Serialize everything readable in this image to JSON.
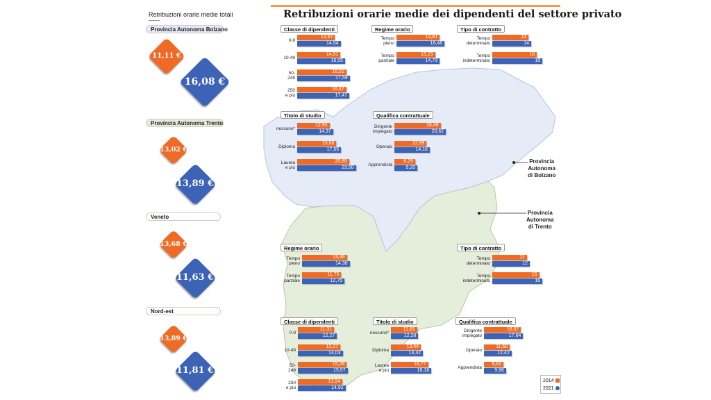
{
  "left_title": "Retribuzioni orarie medie totali",
  "main_title": "Retribuzioni orarie medie dei dipendenti del settore privato",
  "colors": {
    "y2014": "#ef6b25",
    "y2021": "#3c63b5",
    "bolzano_map": "#e6ecf7",
    "trento_map": "#e5eddb"
  },
  "legend": {
    "y2014": "2014",
    "y2021": "2021"
  },
  "map_labels": {
    "bolzano": [
      "Provincia",
      "Autonoma",
      "di Bolzano"
    ],
    "trento": [
      "Provincia",
      "Autonoma",
      "di Trento"
    ]
  },
  "chart_data": [
    {
      "type": "bar",
      "id": "totals",
      "regions": [
        {
          "name": "Provincia Autonoma Bolzano",
          "v2014": 11.11,
          "v2021": 16.08,
          "label2014": "11,11 €",
          "label2021": "16,08 €"
        },
        {
          "name": "Provincia Autonoma Trento",
          "v2014": 13.02,
          "v2021": 13.89,
          "label2014": "13,02 €",
          "label2021": "13,89 €"
        },
        {
          "name": "Veneto",
          "v2014": 13.68,
          "v2021": 11.63,
          "label2014": "13,68 €",
          "label2021": "11,63 €"
        },
        {
          "name": "Nord-est",
          "v2014": 13.89,
          "v2021": 11.81,
          "label2014": "13,89 €",
          "label2021": "11,81 €"
        }
      ]
    },
    {
      "type": "bar",
      "id": "bz-classe",
      "title": "Classe di dipendenti",
      "categories": [
        [
          "0-9"
        ],
        [
          "10-49"
        ],
        [
          "50-",
          "249"
        ],
        [
          "250",
          "e più"
        ]
      ],
      "series": [
        {
          "name": "2014",
          "values": [
            12.67,
            14.51,
            16.52,
            16.47
          ],
          "labels": [
            "12,67",
            "14,51",
            "16,52",
            "16,47"
          ]
        },
        {
          "name": "2021",
          "values": [
            14.54,
            16.05,
            17.59,
            17.47
          ],
          "labels": [
            "14,54",
            "16,05",
            "17,59",
            "17,47"
          ]
        }
      ]
    },
    {
      "type": "bar",
      "id": "bz-regime",
      "title": "Regime orario",
      "categories": [
        [
          "Tempo",
          "pieno"
        ],
        [
          "Tempo",
          "parziale"
        ]
      ],
      "series": [
        {
          "name": "2014",
          "values": [
            14.81,
            13.23
          ],
          "labels": [
            "14,81",
            "13,23"
          ]
        },
        {
          "name": "2021",
          "values": [
            16.48,
            14.79
          ],
          "labels": [
            "16,48",
            "14,79"
          ]
        }
      ]
    },
    {
      "type": "bar",
      "id": "bz-contratto",
      "title": "Tipo di contratto",
      "categories": [
        [
          "Tempo",
          "determinato"
        ],
        [
          "Tempo",
          "indeterminato"
        ]
      ],
      "series": [
        {
          "name": "2014",
          "values": [
            13,
            16
          ],
          "labels": [
            "13",
            "16"
          ]
        },
        {
          "name": "2021",
          "values": [
            14,
            18
          ],
          "labels": [
            "14",
            "18"
          ]
        }
      ]
    },
    {
      "type": "bar",
      "id": "bz-titolo",
      "title": "Titolo di studio",
      "categories": [
        [
          "nessuno*"
        ],
        [
          "Diploma"
        ],
        [
          "Laurea",
          "e più"
        ]
      ],
      "series": [
        {
          "name": "2014",
          "values": [
            12.93,
            15.66,
            20.85
          ],
          "labels": [
            "12,93",
            "15,66",
            "20,85"
          ]
        },
        {
          "name": "2021",
          "values": [
            14.37,
            17.55,
            23.5
          ],
          "labels": [
            "14,37",
            "17,55",
            "23,50"
          ]
        }
      ]
    },
    {
      "type": "bar",
      "id": "bz-qualifica",
      "title": "Qualifica contrattuale",
      "categories": [
        [
          "Dirigente",
          "impiegato"
        ],
        [
          "Operaio"
        ],
        [
          "Apprendista"
        ]
      ],
      "series": [
        {
          "name": "2014",
          "values": [
            18.49,
            12.89,
            8.29
          ],
          "labels": [
            "18,49",
            "12,89",
            "8,29"
          ]
        },
        {
          "name": "2021",
          "values": [
            20.62,
            14.16,
            9.2
          ],
          "labels": [
            "20,62",
            "14,16",
            "9,20"
          ]
        }
      ]
    },
    {
      "type": "bar",
      "id": "tn-regime",
      "title": "Regime orario",
      "categories": [
        [
          "Tempo",
          "pieno"
        ],
        [
          "Tempo",
          "parziale"
        ]
      ],
      "series": [
        {
          "name": "2014",
          "values": [
            13.46,
            11.75
          ],
          "labels": [
            "13,46",
            "11,75"
          ]
        },
        {
          "name": "2021",
          "values": [
            14.3,
            12.75
          ],
          "labels": [
            "14,30",
            "12,75"
          ]
        }
      ]
    },
    {
      "type": "bar",
      "id": "tn-contratto",
      "title": "Tipo di contratto",
      "categories": [
        [
          "Tempo",
          "determinato"
        ],
        [
          "Tempo",
          "indeterminato"
        ]
      ],
      "series": [
        {
          "name": "2014",
          "values": [
            11,
            15
          ],
          "labels": [
            "11",
            "15"
          ]
        },
        {
          "name": "2021",
          "values": [
            12,
            16
          ],
          "labels": [
            "12",
            "16"
          ]
        }
      ]
    },
    {
      "type": "bar",
      "id": "tn-classe",
      "title": "Classe di dipendenti",
      "categories": [
        [
          "0-9"
        ],
        [
          "10-49"
        ],
        [
          "50-",
          "249"
        ],
        [
          "250",
          "e più"
        ]
      ],
      "series": [
        {
          "name": "2014",
          "values": [
            11.31,
            13.27,
            15.28,
            13.94
          ],
          "labels": [
            "11,31",
            "13,27",
            "15,28",
            "13,94"
          ]
        },
        {
          "name": "2021",
          "values": [
            12.27,
            14.03,
            15.57,
            14.92
          ],
          "labels": [
            "12,27",
            "14,03",
            "15,57",
            "14,92"
          ]
        }
      ]
    },
    {
      "type": "bar",
      "id": "tn-titolo",
      "title": "Titolo di studio",
      "categories": [
        [
          "nessuno*"
        ],
        [
          "Diploma"
        ],
        [
          "Laurea",
          "e più"
        ]
      ],
      "series": [
        {
          "name": "2014",
          "values": [
            11.81,
            13.44,
            16.77
          ],
          "labels": [
            "11,81",
            "13,44",
            "16,77"
          ]
        },
        {
          "name": "2021",
          "values": [
            12.28,
            14.42,
            18.16
          ],
          "labels": [
            "12,28",
            "14,42",
            "18,16"
          ]
        }
      ]
    },
    {
      "type": "bar",
      "id": "tn-qualifica",
      "title": "Qualifica contrattuale",
      "categories": [
        [
          "Dirigente",
          "impiegato"
        ],
        [
          "Operaio"
        ],
        [
          "Apprendista"
        ]
      ],
      "series": [
        {
          "name": "2014",
          "values": [
            16.67,
            11.6,
            8.82
          ],
          "labels": [
            "16,67",
            "11,60",
            "8,82"
          ]
        },
        {
          "name": "2021",
          "values": [
            17.64,
            12.42,
            9.96
          ],
          "labels": [
            "17,64",
            "12,42",
            "9,96"
          ]
        }
      ]
    }
  ]
}
